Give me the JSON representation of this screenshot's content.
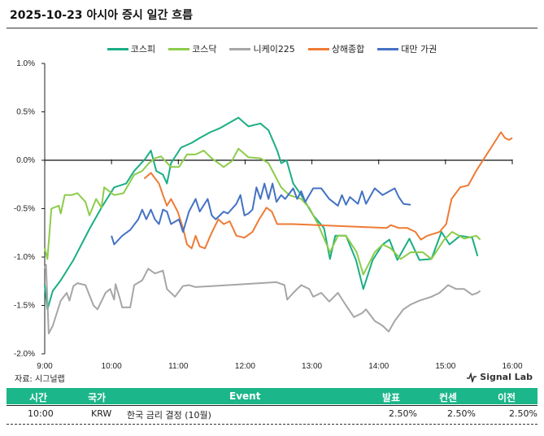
{
  "title": "2025-10-23 아시아 증시 일간 흐름",
  "source": "자료: 시그널랩",
  "logo": "Signal Lab",
  "colors": {
    "kospi": "#1aae84",
    "kosdaq": "#8ccc4a",
    "nikkei": "#a6a6a6",
    "shanghai": "#ee7b35",
    "taiwan": "#4472c4",
    "table_header": "#1bb68a"
  },
  "chart_data": {
    "type": "line",
    "title": "2025-10-23 아시아 증시 일간 흐름",
    "xlabel": "",
    "ylabel": "",
    "xlim": [
      9,
      16
    ],
    "ylim": [
      -2.0,
      1.0
    ],
    "x_ticks": [
      "9:00",
      "10:00",
      "11:00",
      "12:00",
      "13:00",
      "14:00",
      "15:00",
      "16:00"
    ],
    "y_ticks": [
      "1.0%",
      "0.5%",
      "0.0%",
      "-0.5%",
      "-1.0%",
      "-1.5%",
      "-2.0%"
    ],
    "y_tick_values": [
      1.0,
      0.5,
      0.0,
      -0.5,
      -1.0,
      -1.5,
      -2.0
    ],
    "legend_position": "top-center",
    "series": [
      {
        "name": "코스피",
        "key": "kospi",
        "points": [
          [
            9.0,
            -1.29
          ],
          [
            9.04,
            -1.54
          ],
          [
            9.12,
            -1.35
          ],
          [
            9.24,
            -1.24
          ],
          [
            9.43,
            -1.03
          ],
          [
            9.55,
            -0.87
          ],
          [
            9.67,
            -0.71
          ],
          [
            9.85,
            -0.49
          ],
          [
            10.04,
            -0.28
          ],
          [
            10.22,
            -0.24
          ],
          [
            10.34,
            -0.11
          ],
          [
            10.5,
            0.01
          ],
          [
            10.59,
            0.1
          ],
          [
            10.67,
            -0.11
          ],
          [
            10.77,
            -0.15
          ],
          [
            10.83,
            -0.24
          ],
          [
            10.89,
            -0.03
          ],
          [
            11.04,
            0.13
          ],
          [
            11.2,
            0.18
          ],
          [
            11.32,
            0.23
          ],
          [
            11.48,
            0.29
          ],
          [
            11.62,
            0.33
          ],
          [
            11.9,
            0.44
          ],
          [
            12.05,
            0.35
          ],
          [
            12.23,
            0.38
          ],
          [
            12.35,
            0.31
          ],
          [
            12.48,
            0.1
          ],
          [
            12.54,
            -0.03
          ],
          [
            12.62,
            0.0
          ],
          [
            12.72,
            -0.24
          ],
          [
            12.84,
            -0.36
          ],
          [
            13.02,
            -0.57
          ],
          [
            13.18,
            -0.7
          ],
          [
            13.27,
            -1.02
          ],
          [
            13.35,
            -0.78
          ],
          [
            13.51,
            -0.78
          ],
          [
            13.66,
            -1.03
          ],
          [
            13.77,
            -1.33
          ],
          [
            13.91,
            -1.03
          ],
          [
            14.06,
            -0.87
          ],
          [
            14.16,
            -0.82
          ],
          [
            14.28,
            -1.03
          ],
          [
            14.46,
            -0.81
          ],
          [
            14.61,
            -1.03
          ],
          [
            14.79,
            -1.02
          ],
          [
            14.94,
            -0.74
          ],
          [
            15.06,
            -0.87
          ],
          [
            15.22,
            -0.78
          ],
          [
            15.4,
            -0.8
          ],
          [
            15.48,
            -0.99
          ]
        ]
      },
      {
        "name": "코스닥",
        "key": "kosdaq",
        "points": [
          [
            9.0,
            -0.91
          ],
          [
            9.04,
            -1.02
          ],
          [
            9.1,
            -0.5
          ],
          [
            9.21,
            -0.47
          ],
          [
            9.24,
            -0.55
          ],
          [
            9.3,
            -0.36
          ],
          [
            9.4,
            -0.36
          ],
          [
            9.49,
            -0.34
          ],
          [
            9.61,
            -0.43
          ],
          [
            9.67,
            -0.57
          ],
          [
            9.77,
            -0.4
          ],
          [
            9.85,
            -0.49
          ],
          [
            9.89,
            -0.28
          ],
          [
            10.04,
            -0.36
          ],
          [
            10.18,
            -0.34
          ],
          [
            10.34,
            -0.15
          ],
          [
            10.46,
            -0.11
          ],
          [
            10.56,
            -0.03
          ],
          [
            10.65,
            0.02
          ],
          [
            10.74,
            0.04
          ],
          [
            10.89,
            -0.07
          ],
          [
            11.01,
            -0.07
          ],
          [
            11.13,
            0.06
          ],
          [
            11.26,
            0.06
          ],
          [
            11.38,
            0.1
          ],
          [
            11.5,
            0.02
          ],
          [
            11.68,
            -0.07
          ],
          [
            11.8,
            -0.01
          ],
          [
            11.9,
            0.12
          ],
          [
            12.05,
            0.03
          ],
          [
            12.23,
            0.02
          ],
          [
            12.35,
            -0.03
          ],
          [
            12.54,
            -0.28
          ],
          [
            12.66,
            -0.36
          ],
          [
            12.84,
            -0.4
          ],
          [
            12.96,
            -0.49
          ],
          [
            13.09,
            -0.66
          ],
          [
            13.27,
            -0.95
          ],
          [
            13.39,
            -0.78
          ],
          [
            13.51,
            -0.78
          ],
          [
            13.67,
            -0.95
          ],
          [
            13.77,
            -1.18
          ],
          [
            13.94,
            -0.95
          ],
          [
            14.06,
            -0.87
          ],
          [
            14.18,
            -0.91
          ],
          [
            14.33,
            -1.02
          ],
          [
            14.48,
            -0.95
          ],
          [
            14.66,
            -0.95
          ],
          [
            14.79,
            -1.02
          ],
          [
            14.98,
            -0.82
          ],
          [
            15.1,
            -0.74
          ],
          [
            15.28,
            -0.81
          ],
          [
            15.46,
            -0.78
          ],
          [
            15.52,
            -0.82
          ]
        ]
      },
      {
        "name": "니케이225",
        "key": "nikkei",
        "points": [
          [
            9.0,
            -1.12
          ],
          [
            9.02,
            -1.08
          ],
          [
            9.06,
            -1.79
          ],
          [
            9.12,
            -1.71
          ],
          [
            9.24,
            -1.45
          ],
          [
            9.33,
            -1.37
          ],
          [
            9.37,
            -1.45
          ],
          [
            9.43,
            -1.3
          ],
          [
            9.49,
            -1.27
          ],
          [
            9.61,
            -1.29
          ],
          [
            9.73,
            -1.5
          ],
          [
            9.79,
            -1.54
          ],
          [
            9.91,
            -1.37
          ],
          [
            9.98,
            -1.33
          ],
          [
            10.04,
            -1.44
          ],
          [
            10.06,
            -1.28
          ],
          [
            10.13,
            -1.44
          ],
          [
            10.16,
            -1.52
          ],
          [
            10.28,
            -1.52
          ],
          [
            10.34,
            -1.29
          ],
          [
            10.46,
            -1.24
          ],
          [
            10.55,
            -1.12
          ],
          [
            10.65,
            -1.17
          ],
          [
            10.77,
            -1.14
          ],
          [
            10.83,
            -1.33
          ],
          [
            10.95,
            -1.41
          ],
          [
            11.07,
            -1.3
          ],
          [
            11.16,
            -1.29
          ],
          [
            11.26,
            -1.31
          ],
          [
            12.47,
            -1.26
          ],
          [
            12.59,
            -1.29
          ],
          [
            12.63,
            -1.44
          ],
          [
            12.72,
            -1.37
          ],
          [
            12.84,
            -1.29
          ],
          [
            12.96,
            -1.33
          ],
          [
            13.02,
            -1.41
          ],
          [
            13.14,
            -1.37
          ],
          [
            13.26,
            -1.46
          ],
          [
            13.39,
            -1.37
          ],
          [
            13.51,
            -1.5
          ],
          [
            13.63,
            -1.62
          ],
          [
            13.75,
            -1.58
          ],
          [
            13.81,
            -1.54
          ],
          [
            13.94,
            -1.66
          ],
          [
            14.06,
            -1.71
          ],
          [
            14.15,
            -1.77
          ],
          [
            14.24,
            -1.66
          ],
          [
            14.37,
            -1.54
          ],
          [
            14.48,
            -1.49
          ],
          [
            14.61,
            -1.45
          ],
          [
            14.79,
            -1.41
          ],
          [
            14.91,
            -1.37
          ],
          [
            15.04,
            -1.29
          ],
          [
            15.16,
            -1.33
          ],
          [
            15.28,
            -1.33
          ],
          [
            15.4,
            -1.39
          ],
          [
            15.48,
            -1.37
          ],
          [
            15.52,
            -1.35
          ]
        ]
      },
      {
        "name": "상해종합",
        "key": "shanghai",
        "points": [
          [
            10.49,
            -0.19
          ],
          [
            10.59,
            -0.13
          ],
          [
            10.71,
            -0.24
          ],
          [
            10.77,
            -0.36
          ],
          [
            10.83,
            -0.47
          ],
          [
            10.89,
            -0.4
          ],
          [
            10.99,
            -0.53
          ],
          [
            11.07,
            -0.7
          ],
          [
            11.13,
            -0.87
          ],
          [
            11.2,
            -0.91
          ],
          [
            11.26,
            -0.78
          ],
          [
            11.32,
            -0.89
          ],
          [
            11.4,
            -0.91
          ],
          [
            11.48,
            -0.78
          ],
          [
            11.52,
            -0.72
          ],
          [
            11.6,
            -0.61
          ],
          [
            11.68,
            -0.66
          ],
          [
            11.77,
            -0.63
          ],
          [
            11.87,
            -0.78
          ],
          [
            11.99,
            -0.8
          ],
          [
            12.11,
            -0.74
          ],
          [
            12.21,
            -0.61
          ],
          [
            12.32,
            -0.49
          ],
          [
            12.4,
            -0.53
          ],
          [
            12.48,
            -0.66
          ],
          [
            12.72,
            -0.66
          ],
          [
            14.12,
            -0.7
          ],
          [
            14.18,
            -0.67
          ],
          [
            14.3,
            -0.7
          ],
          [
            14.43,
            -0.7
          ],
          [
            14.55,
            -0.74
          ],
          [
            14.63,
            -0.82
          ],
          [
            14.73,
            -0.78
          ],
          [
            14.91,
            -0.74
          ],
          [
            15.01,
            -0.66
          ],
          [
            15.09,
            -0.4
          ],
          [
            15.22,
            -0.28
          ],
          [
            15.34,
            -0.26
          ],
          [
            15.46,
            -0.11
          ],
          [
            15.58,
            0.02
          ],
          [
            15.71,
            0.16
          ],
          [
            15.83,
            0.29
          ],
          [
            15.89,
            0.23
          ],
          [
            15.95,
            0.21
          ],
          [
            16.0,
            0.23
          ]
        ]
      },
      {
        "name": "대만 가권",
        "key": "taiwan",
        "points": [
          [
            10.0,
            -0.78
          ],
          [
            10.04,
            -0.87
          ],
          [
            10.16,
            -0.78
          ],
          [
            10.28,
            -0.72
          ],
          [
            10.4,
            -0.61
          ],
          [
            10.46,
            -0.51
          ],
          [
            10.52,
            -0.61
          ],
          [
            10.59,
            -0.51
          ],
          [
            10.65,
            -0.61
          ],
          [
            10.71,
            -0.66
          ],
          [
            10.77,
            -0.51
          ],
          [
            10.83,
            -0.53
          ],
          [
            10.89,
            -0.66
          ],
          [
            11.01,
            -0.61
          ],
          [
            11.07,
            -0.74
          ],
          [
            11.16,
            -0.53
          ],
          [
            11.26,
            -0.4
          ],
          [
            11.32,
            -0.53
          ],
          [
            11.44,
            -0.4
          ],
          [
            11.5,
            -0.57
          ],
          [
            11.56,
            -0.61
          ],
          [
            11.68,
            -0.53
          ],
          [
            11.74,
            -0.55
          ],
          [
            11.87,
            -0.45
          ],
          [
            11.93,
            -0.36
          ],
          [
            11.99,
            -0.57
          ],
          [
            12.05,
            -0.55
          ],
          [
            12.11,
            -0.51
          ],
          [
            12.17,
            -0.28
          ],
          [
            12.23,
            -0.4
          ],
          [
            12.29,
            -0.24
          ],
          [
            12.35,
            -0.4
          ],
          [
            12.41,
            -0.24
          ],
          [
            12.47,
            -0.43
          ],
          [
            12.54,
            -0.36
          ],
          [
            12.6,
            -0.4
          ],
          [
            12.72,
            -0.29
          ],
          [
            12.78,
            -0.4
          ],
          [
            12.84,
            -0.32
          ],
          [
            12.9,
            -0.43
          ],
          [
            13.02,
            -0.29
          ],
          [
            13.14,
            -0.29
          ],
          [
            13.26,
            -0.4
          ],
          [
            13.39,
            -0.47
          ],
          [
            13.45,
            -0.36
          ],
          [
            13.51,
            -0.46
          ],
          [
            13.57,
            -0.38
          ],
          [
            13.69,
            -0.45
          ],
          [
            13.75,
            -0.32
          ],
          [
            13.81,
            -0.45
          ],
          [
            13.94,
            -0.29
          ],
          [
            14.06,
            -0.36
          ],
          [
            14.24,
            -0.29
          ],
          [
            14.3,
            -0.38
          ],
          [
            14.37,
            -0.45
          ],
          [
            14.48,
            -0.46
          ]
        ]
      }
    ]
  },
  "table": {
    "headers": [
      "시간",
      "국가",
      "Event",
      "발표",
      "컨센",
      "이전"
    ],
    "rows": [
      {
        "time": "10:00",
        "country": "KRW",
        "event": "한국 금리 결정 (10월)",
        "actual": "2.50%",
        "consensus": "2.50%",
        "previous": "2.50%"
      }
    ]
  }
}
